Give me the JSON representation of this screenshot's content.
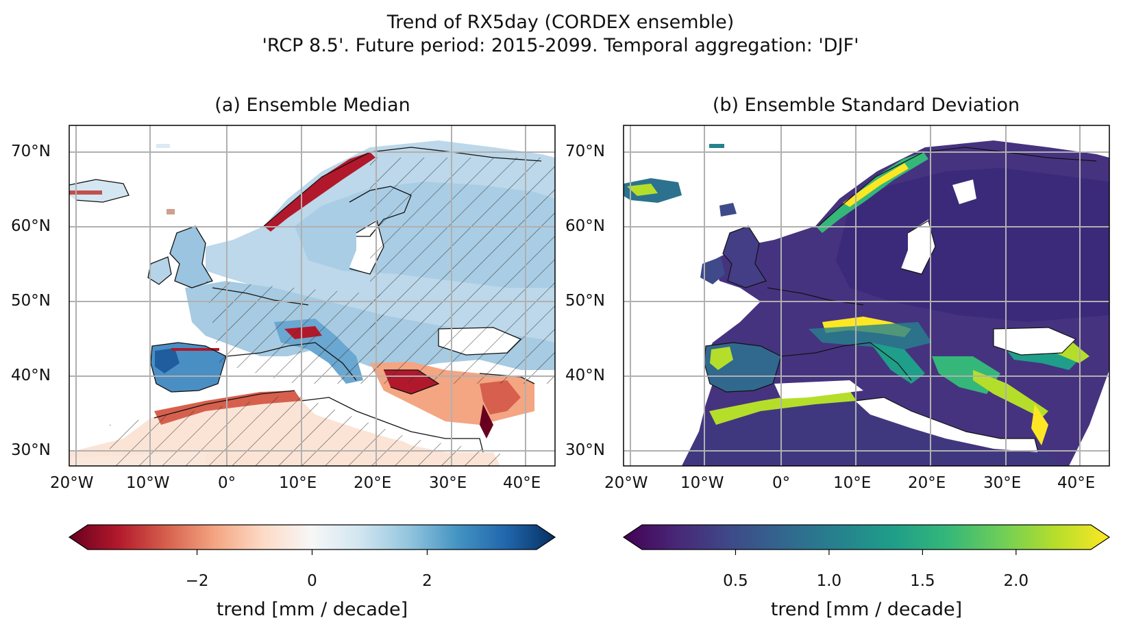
{
  "figure": {
    "title_line1": "Trend of RX5day (CORDEX ensemble)",
    "title_line2": "'RCP 8.5'. Future period: 2015-2099. Temporal aggregation: 'DJF'"
  },
  "panels": [
    {
      "title": "(a) Ensemble Median",
      "colormap": "RdBu",
      "lat_ticks": [
        "70°N",
        "60°N",
        "50°N",
        "40°N",
        "30°N"
      ],
      "lon_ticks": [
        "20°W",
        "10°W",
        "0°",
        "10°E",
        "20°E",
        "30°E",
        "40°E"
      ],
      "colorbar": {
        "ticks": [
          "−2",
          "0",
          "2"
        ],
        "tick_values": [
          -2,
          0,
          2
        ],
        "range": [
          -3.9,
          3.9
        ],
        "label": "trend [mm / decade]",
        "colors": [
          "#67001f",
          "#b2182b",
          "#d6604d",
          "#f4a582",
          "#fddbc7",
          "#f7f7f7",
          "#d1e5f0",
          "#92c5de",
          "#4393c3",
          "#2166ac",
          "#053061"
        ]
      }
    },
    {
      "title": "(b) Ensemble Standard Deviation",
      "colormap": "viridis",
      "lat_ticks": [
        "70°N",
        "60°N",
        "50°N",
        "40°N",
        "30°N"
      ],
      "lon_ticks": [
        "20°W",
        "10°W",
        "0°",
        "10°E",
        "20°E",
        "30°E",
        "40°E"
      ],
      "colorbar": {
        "ticks": [
          "0.5",
          "1.0",
          "1.5",
          "2.0"
        ],
        "tick_values": [
          0.5,
          1.0,
          1.5,
          2.0
        ],
        "range": [
          0.0,
          2.4
        ],
        "label": "trend [mm / decade]",
        "colors": [
          "#440154",
          "#482878",
          "#3e4a89",
          "#31688e",
          "#26828e",
          "#1f9e89",
          "#35b779",
          "#6ece58",
          "#b5de2b",
          "#fde725"
        ]
      }
    }
  ]
}
